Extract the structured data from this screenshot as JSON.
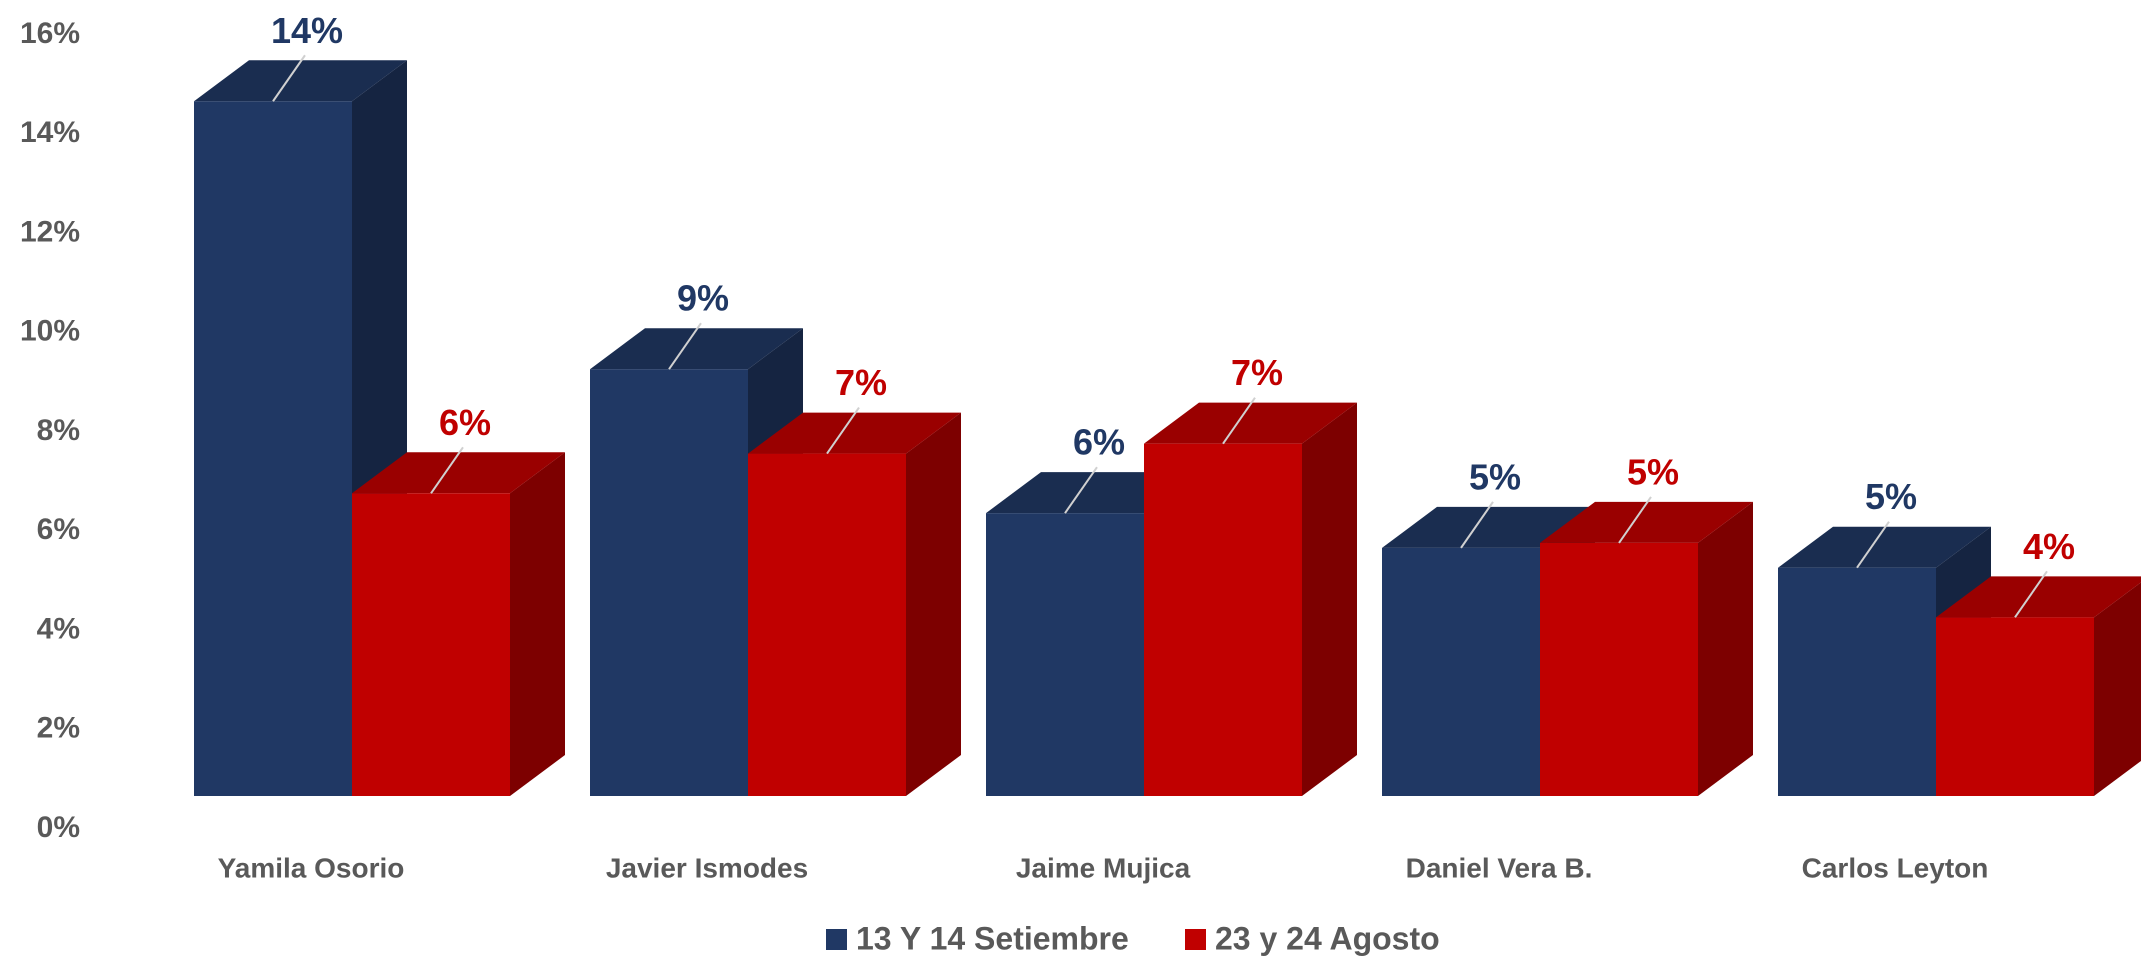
{
  "chart_data": {
    "type": "bar3d",
    "categories": [
      "Yamila Osorio",
      "Javier Ismodes",
      "Jaime Mujica",
      "Daniel Vera B.",
      "Carlos Leyton"
    ],
    "series": [
      {
        "name": "13 Y 14 Setiembre",
        "color": "#203864",
        "values": [
          14.0,
          8.6,
          5.7,
          5.0,
          4.6
        ],
        "value_labels": [
          "14%",
          "9%",
          "6%",
          "5%",
          "5%"
        ]
      },
      {
        "name": "23 y 24 Agosto",
        "color": "#c00000",
        "values": [
          6.1,
          6.9,
          7.1,
          5.1,
          3.6
        ],
        "value_labels": [
          "6%",
          "7%",
          "7%",
          "5%",
          "4%"
        ]
      }
    ],
    "ylim": [
      0,
      16
    ],
    "yticks": [
      {
        "value": 0,
        "label": "0%"
      },
      {
        "value": 2,
        "label": "2%"
      },
      {
        "value": 4,
        "label": "4%"
      },
      {
        "value": 6,
        "label": "6%"
      },
      {
        "value": 8,
        "label": "8%"
      },
      {
        "value": 10,
        "label": "10%"
      },
      {
        "value": 12,
        "label": "12%"
      },
      {
        "value": 14,
        "label": "14%"
      },
      {
        "value": 16,
        "label": "16%"
      }
    ],
    "legend": "bottom"
  }
}
